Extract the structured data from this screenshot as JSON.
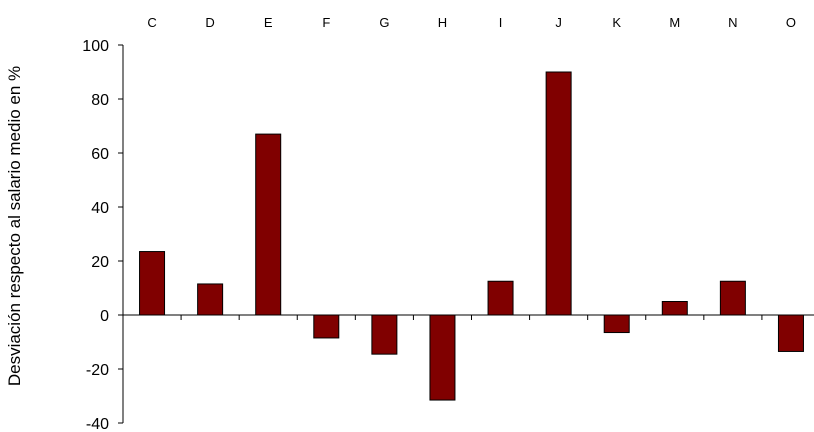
{
  "chart_data": {
    "type": "bar",
    "title": "",
    "xlabel": "",
    "ylabel": "Desviación respecto al salario medio en %",
    "categories": [
      "C",
      "D",
      "E",
      "F",
      "G",
      "H",
      "I",
      "J",
      "K",
      "M",
      "N",
      "O"
    ],
    "values": [
      23.5,
      11.5,
      67,
      -8.5,
      -14.5,
      -31.5,
      12.5,
      90,
      -6.5,
      5,
      12.5,
      -13.5
    ],
    "ylim": [
      -40,
      100
    ],
    "yticks": [
      "100",
      "80",
      "60",
      "40",
      "20",
      "0",
      "-20",
      "-40"
    ],
    "x_axis_position": "top",
    "grid": false,
    "legend": "none",
    "bar_color": "#800000",
    "bar_edge_color": "#000000"
  }
}
